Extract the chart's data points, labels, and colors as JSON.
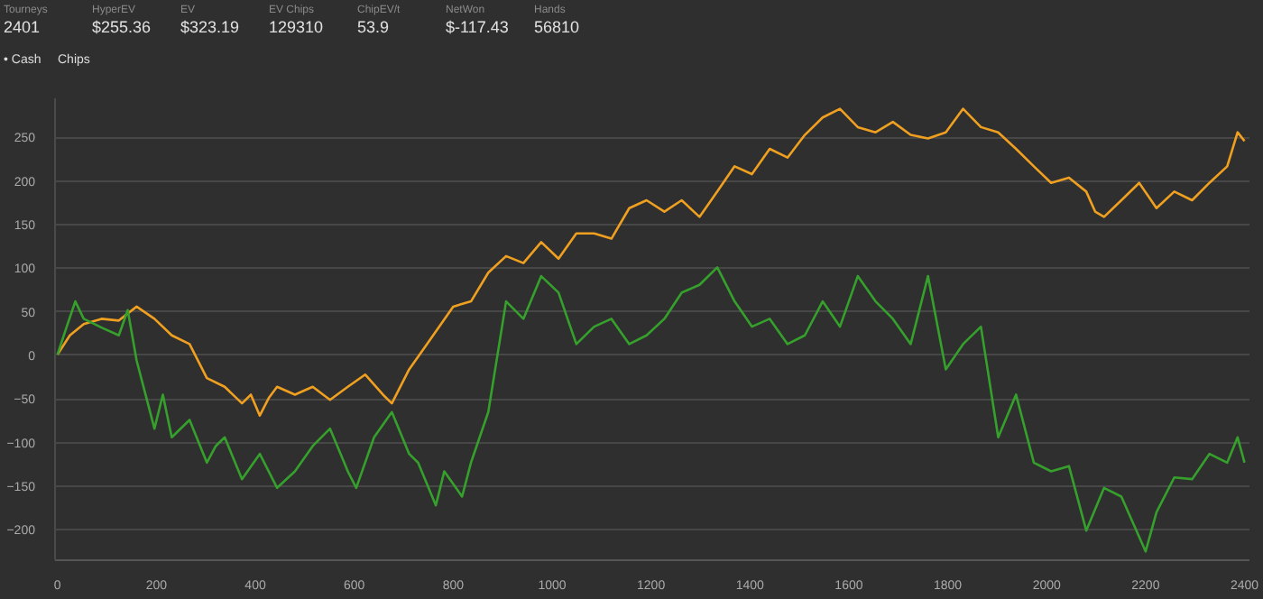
{
  "chart_data": {
    "type": "line",
    "annotations": [
      "Tourneys",
      "2401",
      "HyperEV",
      "$255.36",
      "EV",
      "$323.19",
      "EV Chips",
      "129310",
      "ChipEV/t",
      "53.9",
      "NetWon",
      "$-117.43",
      "Hands",
      "56810",
      "• Cash",
      "Chips"
    ],
    "series": [
      {
        "color": "#f0a020",
        "x": [
          0,
          25,
          53,
          89,
          124,
          160,
          196,
          231,
          267,
          302,
          338,
          373,
          391,
          409,
          427,
          444,
          480,
          516,
          551,
          587,
          622,
          658,
          676,
          711,
          747,
          800,
          836,
          871,
          907,
          942,
          978,
          1013,
          1049,
          1085,
          1120,
          1156,
          1191,
          1227,
          1262,
          1298,
          1334,
          1369,
          1404,
          1440,
          1476,
          1511,
          1547,
          1582,
          1618,
          1654,
          1689,
          1725,
          1760,
          1796,
          1831,
          1867,
          1902,
          1938,
          1974,
          2009,
          2045,
          2080,
          2098,
          2116,
          2151,
          2187,
          2222,
          2258,
          2294,
          2329,
          2365,
          2386,
          2400
        ],
        "values": [
          1,
          23,
          36,
          42,
          40,
          56,
          42,
          23,
          13,
          -26,
          -36,
          -55,
          -45,
          -69,
          -49,
          -36,
          -45,
          -36,
          -51,
          -36,
          -22,
          -45,
          -55,
          -16,
          13,
          56,
          62,
          95,
          114,
          106,
          130,
          111,
          140,
          140,
          134,
          169,
          178,
          165,
          178,
          159,
          188,
          217,
          208,
          237,
          227,
          253,
          273,
          283,
          262,
          256,
          268,
          253,
          249,
          256,
          283,
          262,
          256,
          237,
          217,
          198,
          204,
          188,
          165,
          159,
          178,
          198,
          169,
          188,
          178,
          198,
          217,
          256,
          246
        ]
      },
      {
        "color": "#36a02c",
        "x": [
          0,
          18,
          36,
          53,
          89,
          124,
          142,
          160,
          178,
          196,
          213,
          231,
          267,
          302,
          320,
          338,
          373,
          409,
          444,
          480,
          516,
          551,
          587,
          604,
          640,
          676,
          711,
          729,
          765,
          782,
          818,
          836,
          871,
          907,
          942,
          978,
          1013,
          1049,
          1085,
          1120,
          1156,
          1191,
          1227,
          1262,
          1298,
          1334,
          1369,
          1404,
          1440,
          1476,
          1511,
          1547,
          1582,
          1618,
          1654,
          1689,
          1725,
          1760,
          1796,
          1831,
          1867,
          1902,
          1938,
          1974,
          2009,
          2045,
          2080,
          2116,
          2151,
          2200,
          2222,
          2258,
          2294,
          2329,
          2365,
          2386,
          2400
        ],
        "values": [
          1,
          32,
          62,
          42,
          32,
          23,
          52,
          -6,
          -45,
          -84,
          -45,
          -94,
          -74,
          -123,
          -104,
          -94,
          -142,
          -113,
          -152,
          -133,
          -104,
          -84,
          -133,
          -152,
          -94,
          -65,
          -113,
          -123,
          -172,
          -133,
          -162,
          -123,
          -65,
          62,
          42,
          91,
          72,
          13,
          33,
          42,
          13,
          23,
          42,
          72,
          81,
          101,
          62,
          33,
          42,
          13,
          23,
          62,
          33,
          91,
          62,
          42,
          13,
          91,
          -16,
          13,
          33,
          -94,
          -45,
          -123,
          -133,
          -127,
          -201,
          -152,
          -162,
          -225,
          -180,
          -140,
          -142,
          -113,
          -123,
          -94,
          -123
        ]
      }
    ],
    "xlim": [
      -5,
      2410
    ],
    "ylim": [
      -235,
      295
    ],
    "xticks": [
      0,
      200,
      400,
      600,
      800,
      1000,
      1200,
      1400,
      1600,
      1800,
      2000,
      2200,
      2400
    ],
    "yticks": [
      -200,
      -150,
      -100,
      -50,
      0,
      50,
      100,
      150,
      200,
      250
    ],
    "grid": "y"
  }
}
